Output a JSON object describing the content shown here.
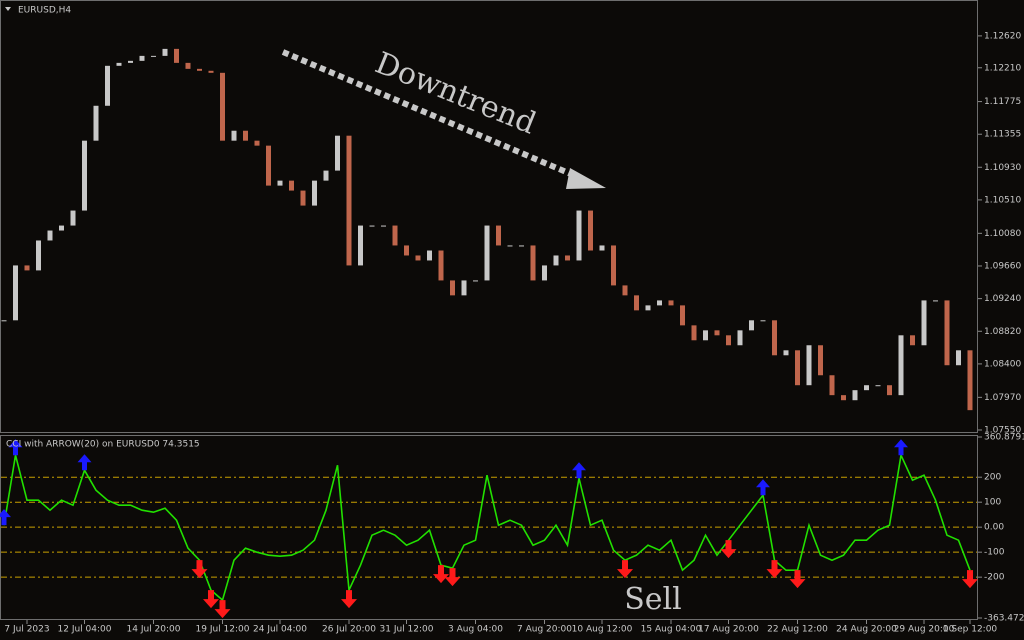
{
  "header": {
    "symbol": "EURUSD,H4"
  },
  "annotations": {
    "trend": "Downtrend",
    "signal": "Sell"
  },
  "chart_data": [
    {
      "type": "candlestick",
      "up_color": "#c8c8c8",
      "down_color": "#c0664c",
      "values": [
        1.08961,
        1.09667,
        1.09603,
        1.09988,
        1.10116,
        1.1018,
        1.10373,
        1.11272,
        1.11721,
        1.12235,
        1.12273,
        1.12299,
        1.12363,
        1.12363,
        1.12453,
        1.12273,
        1.12196,
        1.12171,
        1.12145,
        1.11272,
        1.114,
        1.11272,
        1.11208,
        1.10694,
        1.10758,
        1.1063,
        1.10437,
        1.10758,
        1.10887,
        1.11336,
        1.09667,
        1.1018,
        1.1018,
        1.1018,
        1.09924,
        1.09795,
        1.09731,
        1.09859,
        1.09474,
        1.09282,
        1.09474,
        1.09474,
        1.1018,
        1.09924,
        1.09924,
        1.09924,
        1.09474,
        1.09667,
        1.09795,
        1.09731,
        1.10373,
        1.09859,
        1.09924,
        1.0941,
        1.09282,
        1.09089,
        1.09153,
        1.09217,
        1.09153,
        1.08896,
        1.08704,
        1.08832,
        1.08768,
        1.0864,
        1.08832,
        1.08961,
        1.08961,
        1.08511,
        1.08575,
        1.08126,
        1.0864,
        1.08254,
        1.07998,
        1.07933,
        1.08062,
        1.08126,
        1.08126,
        1.07998,
        1.08768,
        1.0864,
        1.09217,
        1.09217,
        1.08383,
        1.08575,
        1.07805
      ],
      "ylim": [
        1.07524,
        1.13069
      ],
      "yticks": [
        {
          "value": 1.1262,
          "label": "1.12620"
        },
        {
          "value": 1.1221,
          "label": "1.12210"
        },
        {
          "value": 1.11775,
          "label": "1.11775"
        },
        {
          "value": 1.11355,
          "label": "1.11355"
        },
        {
          "value": 1.1093,
          "label": "1.10930"
        },
        {
          "value": 1.1051,
          "label": "1.10510"
        },
        {
          "value": 1.1008,
          "label": "1.10080"
        },
        {
          "value": 1.0966,
          "label": "1.09660"
        },
        {
          "value": 1.0924,
          "label": "1.09240"
        },
        {
          "value": 1.0882,
          "label": "1.08820"
        },
        {
          "value": 1.084,
          "label": "1.08400"
        },
        {
          "value": 1.0797,
          "label": "1.07970"
        },
        {
          "value": 1.0755,
          "label": "1.07550"
        }
      ]
    },
    {
      "type": "line",
      "title": "CCI with ARROW(20) on EURUSD0 74.3515",
      "color": "#22e000",
      "categories": [
        null,
        null,
        "7 Jul 2023",
        null,
        null,
        null,
        null,
        "12 Jul 04:00",
        null,
        null,
        null,
        null,
        null,
        "14 Jul 20:00",
        null,
        null,
        null,
        null,
        null,
        "19 Jul 12:00",
        null,
        null,
        null,
        null,
        "24 Jul 04:00",
        null,
        null,
        null,
        null,
        null,
        "26 Jul 20:00",
        null,
        null,
        null,
        null,
        "31 Jul 12:00",
        null,
        null,
        null,
        null,
        null,
        "3 Aug 04:00",
        null,
        null,
        null,
        null,
        null,
        "7 Aug 20:00",
        null,
        null,
        null,
        null,
        "10 Aug 12:00",
        null,
        null,
        null,
        null,
        null,
        "15 Aug 04:00",
        null,
        null,
        null,
        null,
        "17 Aug 20:00",
        null,
        null,
        null,
        null,
        null,
        "22 Aug 12:00",
        null,
        null,
        null,
        null,
        null,
        "24 Aug 20:00",
        null,
        null,
        null,
        null,
        "29 Aug 20:00",
        null,
        null,
        null,
        "1 Sep 12:00"
      ],
      "values": [
        8,
        288,
        108,
        108,
        68,
        108,
        88,
        228,
        148,
        108,
        88,
        88,
        68,
        60,
        76,
        28,
        -84,
        -132,
        -252,
        -292,
        -132,
        -84,
        -100,
        -112,
        -116,
        -112,
        -92,
        -52,
        68,
        248,
        -252,
        -152,
        -32,
        -12,
        -32,
        -72,
        -52,
        -12,
        -152,
        -164,
        -72,
        -52,
        208,
        8,
        28,
        8,
        -72,
        -52,
        8,
        -72,
        196,
        8,
        28,
        -92,
        -132,
        -112,
        -72,
        -92,
        -52,
        -172,
        -132,
        -32,
        -112,
        -52,
        8,
        68,
        128,
        -132,
        -172,
        -172,
        8,
        -112,
        -132,
        -112,
        -52,
        -52,
        -12,
        8,
        288,
        188,
        208,
        108,
        -32,
        -52,
        -172
      ],
      "signals_up": {
        "color": "#1a1aff",
        "values": [
          8,
          288,
          null,
          null,
          null,
          null,
          null,
          228,
          null,
          null,
          null,
          null,
          null,
          null,
          null,
          null,
          null,
          null,
          null,
          null,
          null,
          null,
          null,
          null,
          null,
          null,
          null,
          null,
          null,
          null,
          null,
          null,
          null,
          null,
          null,
          null,
          null,
          null,
          null,
          null,
          null,
          null,
          null,
          null,
          null,
          null,
          null,
          null,
          null,
          null,
          196,
          null,
          null,
          null,
          null,
          null,
          null,
          null,
          null,
          null,
          null,
          null,
          null,
          null,
          null,
          null,
          128,
          null,
          null,
          null,
          null,
          null,
          null,
          null,
          null,
          null,
          null,
          null,
          288,
          null,
          null,
          null,
          null,
          null,
          null
        ]
      },
      "signals_down": {
        "color": "#ff1a1a",
        "values": [
          null,
          null,
          null,
          null,
          null,
          null,
          null,
          null,
          null,
          null,
          null,
          null,
          null,
          null,
          null,
          null,
          null,
          -132,
          -252,
          -292,
          null,
          null,
          null,
          null,
          null,
          null,
          null,
          null,
          null,
          null,
          -252,
          null,
          null,
          null,
          null,
          null,
          null,
          null,
          -152,
          -164,
          null,
          null,
          null,
          null,
          null,
          null,
          null,
          null,
          null,
          null,
          null,
          null,
          null,
          null,
          -132,
          null,
          null,
          null,
          null,
          null,
          null,
          null,
          null,
          -52,
          null,
          null,
          null,
          -132,
          null,
          -172,
          null,
          null,
          null,
          null,
          null,
          null,
          null,
          null,
          null,
          null,
          null,
          null,
          null,
          null,
          -172
        ]
      },
      "ylim": [
        -363.4721,
        360.8791
      ],
      "yticks": [
        360.8791,
        200,
        100,
        {
          "value": 0,
          "label": "0.00"
        },
        -100,
        -200,
        -363.4721
      ],
      "grid_color": "#c8a000"
    }
  ]
}
